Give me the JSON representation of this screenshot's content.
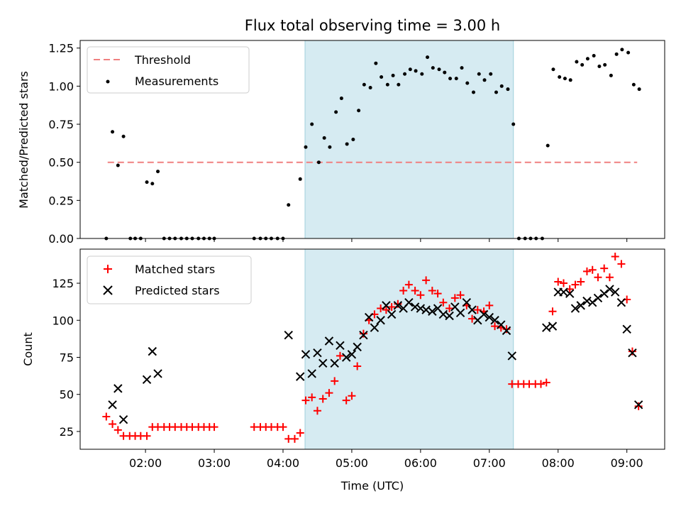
{
  "chart_data": [
    {
      "type": "scatter",
      "title": "Flux total observing time = 3.00 h",
      "xlabel": "",
      "ylabel": "Matched/Predicted stars",
      "ylim": [
        0,
        1.3
      ],
      "yticks": [
        0.0,
        0.25,
        0.5,
        0.75,
        1.0,
        1.25
      ],
      "ytick_labels": [
        "0.00",
        "0.25",
        "0.50",
        "0.75",
        "1.00",
        "1.25"
      ],
      "xlim": [
        1.05,
        9.55
      ],
      "highlight_span": [
        4.32,
        7.35
      ],
      "legend_position": "top-left",
      "threshold": {
        "name": "Threshold",
        "y": 0.5,
        "x_range": [
          1.45,
          9.15
        ],
        "color": "#f08080"
      },
      "series": [
        {
          "name": "Measurements",
          "color": "#000000",
          "points": [
            [
              1.43,
              0.0
            ],
            [
              1.52,
              0.7
            ],
            [
              1.6,
              0.48
            ],
            [
              1.68,
              0.67
            ],
            [
              1.78,
              0.0
            ],
            [
              1.85,
              0.0
            ],
            [
              1.93,
              0.0
            ],
            [
              2.02,
              0.37
            ],
            [
              2.1,
              0.36
            ],
            [
              2.18,
              0.44
            ],
            [
              2.27,
              0.0
            ],
            [
              2.35,
              0.0
            ],
            [
              2.43,
              0.0
            ],
            [
              2.52,
              0.0
            ],
            [
              2.6,
              0.0
            ],
            [
              2.68,
              0.0
            ],
            [
              2.77,
              0.0
            ],
            [
              2.85,
              0.0
            ],
            [
              2.93,
              0.0
            ],
            [
              3.0,
              0.0
            ],
            [
              3.58,
              0.0
            ],
            [
              3.67,
              0.0
            ],
            [
              3.75,
              0.0
            ],
            [
              3.83,
              0.0
            ],
            [
              3.92,
              0.0
            ],
            [
              4.0,
              0.0
            ],
            [
              4.08,
              0.22
            ],
            [
              4.25,
              0.39
            ],
            [
              4.33,
              0.6
            ],
            [
              4.42,
              0.75
            ],
            [
              4.52,
              0.5
            ],
            [
              4.6,
              0.66
            ],
            [
              4.68,
              0.6
            ],
            [
              4.77,
              0.83
            ],
            [
              4.85,
              0.92
            ],
            [
              4.93,
              0.62
            ],
            [
              5.02,
              0.65
            ],
            [
              5.1,
              0.84
            ],
            [
              5.18,
              1.01
            ],
            [
              5.27,
              0.99
            ],
            [
              5.35,
              1.15
            ],
            [
              5.43,
              1.06
            ],
            [
              5.52,
              1.01
            ],
            [
              5.6,
              1.07
            ],
            [
              5.68,
              1.01
            ],
            [
              5.77,
              1.08
            ],
            [
              5.85,
              1.11
            ],
            [
              5.93,
              1.1
            ],
            [
              6.02,
              1.08
            ],
            [
              6.1,
              1.19
            ],
            [
              6.18,
              1.12
            ],
            [
              6.27,
              1.11
            ],
            [
              6.35,
              1.09
            ],
            [
              6.43,
              1.05
            ],
            [
              6.52,
              1.05
            ],
            [
              6.6,
              1.12
            ],
            [
              6.68,
              1.02
            ],
            [
              6.77,
              0.96
            ],
            [
              6.85,
              1.08
            ],
            [
              6.93,
              1.04
            ],
            [
              7.02,
              1.08
            ],
            [
              7.1,
              0.96
            ],
            [
              7.18,
              1.0
            ],
            [
              7.27,
              0.98
            ],
            [
              7.35,
              0.75
            ],
            [
              7.43,
              0.0
            ],
            [
              7.52,
              0.0
            ],
            [
              7.6,
              0.0
            ],
            [
              7.68,
              0.0
            ],
            [
              7.77,
              0.0
            ],
            [
              7.85,
              0.61
            ],
            [
              7.93,
              1.11
            ],
            [
              8.02,
              1.06
            ],
            [
              8.1,
              1.05
            ],
            [
              8.18,
              1.04
            ],
            [
              8.27,
              1.16
            ],
            [
              8.35,
              1.14
            ],
            [
              8.43,
              1.18
            ],
            [
              8.52,
              1.2
            ],
            [
              8.6,
              1.13
            ],
            [
              8.68,
              1.14
            ],
            [
              8.77,
              1.07
            ],
            [
              8.85,
              1.21
            ],
            [
              8.93,
              1.24
            ],
            [
              9.02,
              1.22
            ],
            [
              9.1,
              1.01
            ],
            [
              9.18,
              0.98
            ]
          ]
        }
      ]
    },
    {
      "type": "scatter",
      "title": "",
      "xlabel": "Time (UTC)",
      "ylabel": "Count",
      "ylim": [
        13,
        148
      ],
      "yticks": [
        25,
        50,
        75,
        100,
        125
      ],
      "ytick_labels": [
        "25",
        "50",
        "75",
        "100",
        "125"
      ],
      "xlim": [
        1.05,
        9.55
      ],
      "xticks": [
        2,
        3,
        4,
        5,
        6,
        7,
        8,
        9
      ],
      "xtick_labels": [
        "02:00",
        "03:00",
        "04:00",
        "05:00",
        "06:00",
        "07:00",
        "08:00",
        "09:00"
      ],
      "highlight_span": [
        4.32,
        7.35
      ],
      "legend_position": "top-left",
      "series": [
        {
          "name": "Matched stars",
          "color": "#ff0000",
          "marker": "plus",
          "points": [
            [
              1.43,
              35
            ],
            [
              1.52,
              30
            ],
            [
              1.6,
              26
            ],
            [
              1.68,
              22
            ],
            [
              1.77,
              22
            ],
            [
              1.85,
              22
            ],
            [
              1.93,
              22
            ],
            [
              2.02,
              22
            ],
            [
              2.1,
              28
            ],
            [
              2.18,
              28
            ],
            [
              2.27,
              28
            ],
            [
              2.35,
              28
            ],
            [
              2.43,
              28
            ],
            [
              2.52,
              28
            ],
            [
              2.6,
              28
            ],
            [
              2.68,
              28
            ],
            [
              2.77,
              28
            ],
            [
              2.85,
              28
            ],
            [
              2.93,
              28
            ],
            [
              3.0,
              28
            ],
            [
              3.58,
              28
            ],
            [
              3.67,
              28
            ],
            [
              3.75,
              28
            ],
            [
              3.83,
              28
            ],
            [
              3.92,
              28
            ],
            [
              4.0,
              28
            ],
            [
              4.08,
              20
            ],
            [
              4.17,
              20
            ],
            [
              4.25,
              24
            ],
            [
              4.33,
              46
            ],
            [
              4.42,
              48
            ],
            [
              4.5,
              39
            ],
            [
              4.58,
              47
            ],
            [
              4.67,
              51
            ],
            [
              4.75,
              59
            ],
            [
              4.83,
              76
            ],
            [
              4.92,
              46
            ],
            [
              5.0,
              49
            ],
            [
              5.08,
              69
            ],
            [
              5.17,
              91
            ],
            [
              5.25,
              100
            ],
            [
              5.33,
              104
            ],
            [
              5.42,
              108
            ],
            [
              5.5,
              107
            ],
            [
              5.58,
              109
            ],
            [
              5.67,
              111
            ],
            [
              5.75,
              120
            ],
            [
              5.83,
              124
            ],
            [
              5.92,
              120
            ],
            [
              6.0,
              117
            ],
            [
              6.08,
              127
            ],
            [
              6.17,
              120
            ],
            [
              6.25,
              118
            ],
            [
              6.33,
              112
            ],
            [
              6.42,
              108
            ],
            [
              6.5,
              115
            ],
            [
              6.58,
              117
            ],
            [
              6.67,
              110
            ],
            [
              6.75,
              101
            ],
            [
              6.83,
              107
            ],
            [
              6.92,
              106
            ],
            [
              7.0,
              110
            ],
            [
              7.08,
              96
            ],
            [
              7.17,
              95
            ],
            [
              7.25,
              94
            ],
            [
              7.33,
              57
            ],
            [
              7.42,
              57
            ],
            [
              7.5,
              57
            ],
            [
              7.58,
              57
            ],
            [
              7.67,
              57
            ],
            [
              7.75,
              57
            ],
            [
              7.83,
              58
            ],
            [
              7.92,
              106
            ],
            [
              8.0,
              126
            ],
            [
              8.08,
              125
            ],
            [
              8.17,
              121
            ],
            [
              8.25,
              124
            ],
            [
              8.33,
              126
            ],
            [
              8.42,
              133
            ],
            [
              8.5,
              134
            ],
            [
              8.58,
              129
            ],
            [
              8.67,
              135
            ],
            [
              8.75,
              129
            ],
            [
              8.83,
              143
            ],
            [
              8.92,
              138
            ],
            [
              9.0,
              114
            ],
            [
              9.08,
              79
            ],
            [
              9.17,
              42
            ]
          ]
        },
        {
          "name": "Predicted stars",
          "color": "#000000",
          "marker": "x",
          "points": [
            [
              1.52,
              43
            ],
            [
              1.6,
              54
            ],
            [
              1.68,
              33
            ],
            [
              2.02,
              60
            ],
            [
              2.1,
              79
            ],
            [
              2.18,
              64
            ],
            [
              4.08,
              90
            ],
            [
              4.25,
              62
            ],
            [
              4.33,
              77
            ],
            [
              4.42,
              64
            ],
            [
              4.5,
              78
            ],
            [
              4.58,
              71
            ],
            [
              4.67,
              86
            ],
            [
              4.75,
              71
            ],
            [
              4.83,
              83
            ],
            [
              4.92,
              75
            ],
            [
              5.0,
              77
            ],
            [
              5.08,
              82
            ],
            [
              5.17,
              90
            ],
            [
              5.25,
              102
            ],
            [
              5.33,
              95
            ],
            [
              5.42,
              100
            ],
            [
              5.5,
              110
            ],
            [
              5.58,
              104
            ],
            [
              5.67,
              110
            ],
            [
              5.75,
              108
            ],
            [
              5.83,
              112
            ],
            [
              5.92,
              109
            ],
            [
              6.0,
              108
            ],
            [
              6.08,
              107
            ],
            [
              6.17,
              106
            ],
            [
              6.25,
              108
            ],
            [
              6.33,
              104
            ],
            [
              6.42,
              103
            ],
            [
              6.5,
              109
            ],
            [
              6.58,
              105
            ],
            [
              6.67,
              112
            ],
            [
              6.75,
              107
            ],
            [
              6.83,
              100
            ],
            [
              6.92,
              104
            ],
            [
              7.0,
              102
            ],
            [
              7.08,
              100
            ],
            [
              7.17,
              97
            ],
            [
              7.25,
              93
            ],
            [
              7.33,
              76
            ],
            [
              7.83,
              95
            ],
            [
              7.92,
              96
            ],
            [
              8.0,
              119
            ],
            [
              8.08,
              119
            ],
            [
              8.17,
              118
            ],
            [
              8.25,
              108
            ],
            [
              8.33,
              110
            ],
            [
              8.42,
              113
            ],
            [
              8.5,
              112
            ],
            [
              8.58,
              115
            ],
            [
              8.67,
              118
            ],
            [
              8.75,
              121
            ],
            [
              8.83,
              119
            ],
            [
              8.92,
              112
            ],
            [
              9.0,
              94
            ],
            [
              9.08,
              78
            ],
            [
              9.17,
              43
            ]
          ]
        }
      ]
    }
  ],
  "colors": {
    "span_fill": "#add8e6",
    "span_edge": "#a0cfdc"
  }
}
